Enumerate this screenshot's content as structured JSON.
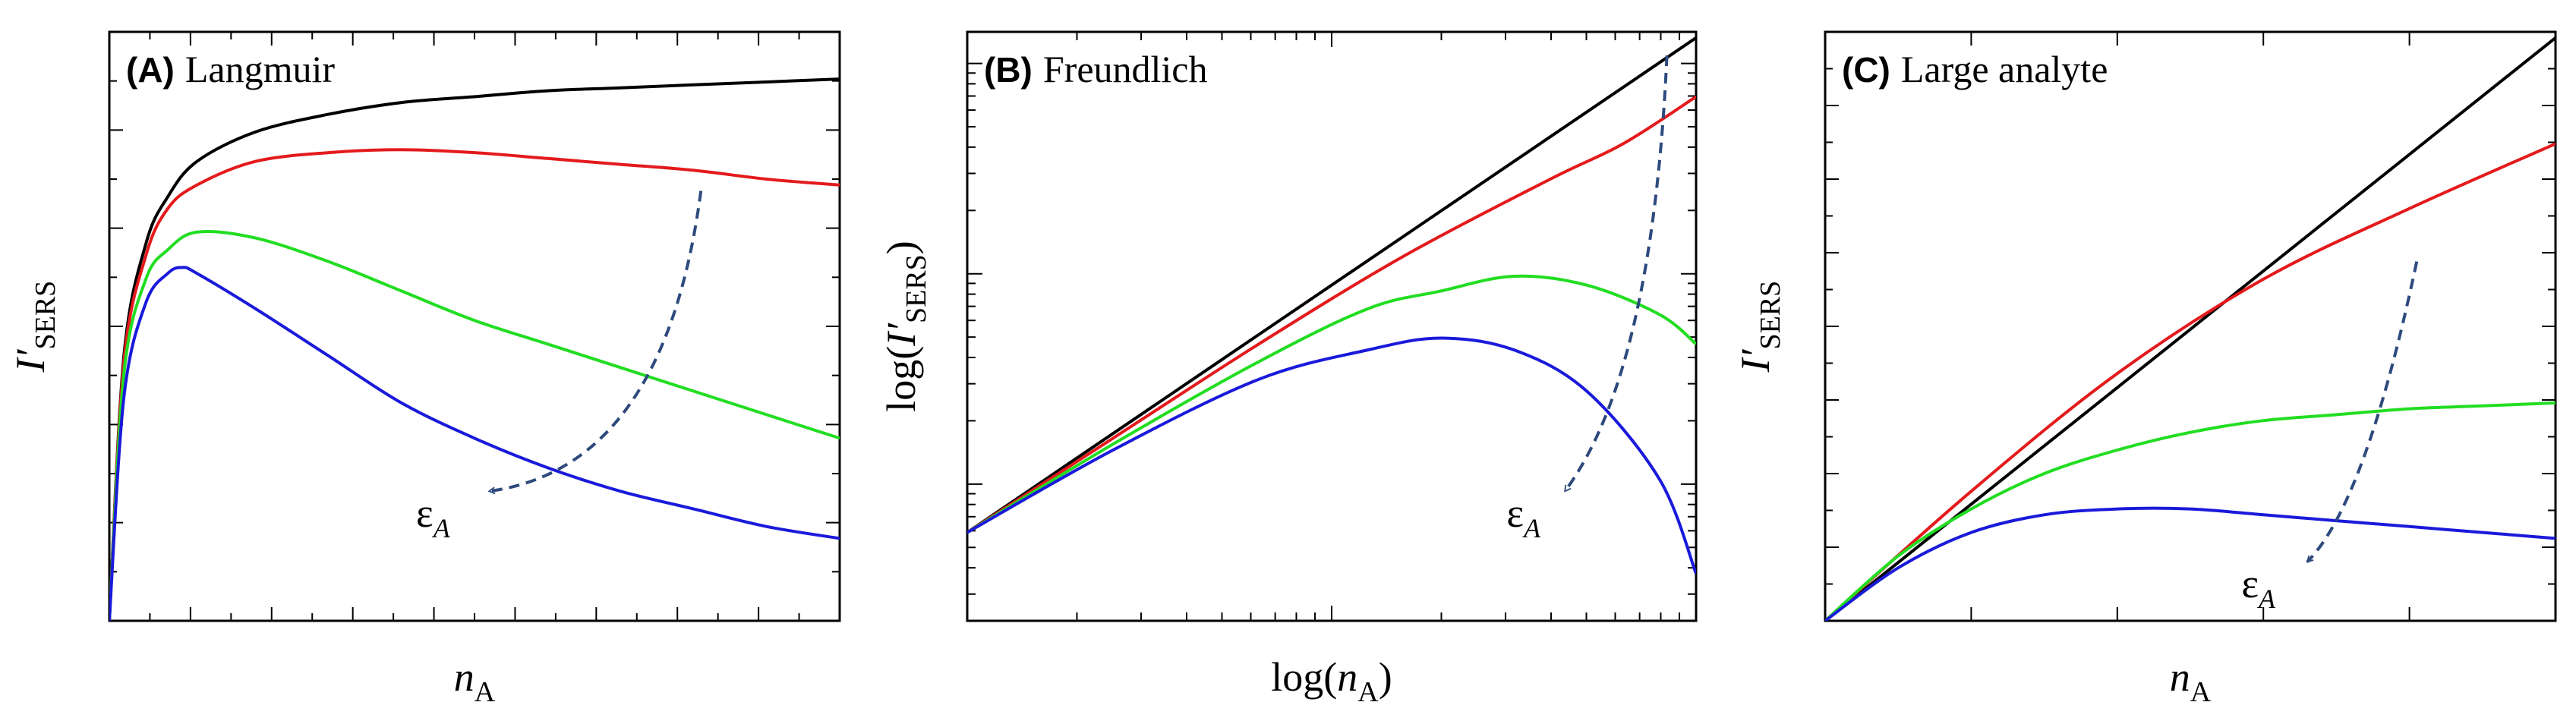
{
  "figure": {
    "colors": {
      "frame": "#000000",
      "arrow": "#2e4a7d"
    }
  },
  "chart_data": [
    {
      "id": "A",
      "type": "line",
      "letter": "(A)",
      "name": "Langmuir",
      "xlabel": {
        "main": "n",
        "sub": "A"
      },
      "ylabel": {
        "main": "I′",
        "sub": "SERS"
      },
      "xscale": "linear",
      "yscale": "linear",
      "xlim": [
        0,
        1
      ],
      "ylim": [
        0,
        1
      ],
      "grid": false,
      "legend": "none",
      "annotation": {
        "symbol": "ε",
        "sub": "A",
        "meaning": "arrow indicating increasing ε_A"
      },
      "series": [
        {
          "color": "#000000",
          "points": [
            [
              0,
              0
            ],
            [
              0.02,
              0.45
            ],
            [
              0.05,
              0.64
            ],
            [
              0.08,
              0.72
            ],
            [
              0.12,
              0.78
            ],
            [
              0.2,
              0.83
            ],
            [
              0.3,
              0.86
            ],
            [
              0.4,
              0.88
            ],
            [
              0.5,
              0.89
            ],
            [
              0.6,
              0.9
            ],
            [
              0.7,
              0.905
            ],
            [
              0.8,
              0.91
            ],
            [
              0.9,
              0.915
            ],
            [
              1,
              0.92
            ]
          ]
        },
        {
          "color": "#e41a1c",
          "points": [
            [
              0,
              0
            ],
            [
              0.02,
              0.44
            ],
            [
              0.05,
              0.62
            ],
            [
              0.08,
              0.7
            ],
            [
              0.12,
              0.74
            ],
            [
              0.2,
              0.78
            ],
            [
              0.3,
              0.795
            ],
            [
              0.4,
              0.8
            ],
            [
              0.5,
              0.795
            ],
            [
              0.6,
              0.785
            ],
            [
              0.7,
              0.775
            ],
            [
              0.8,
              0.765
            ],
            [
              0.9,
              0.75
            ],
            [
              1,
              0.74
            ]
          ]
        },
        {
          "color": "#22dd22",
          "points": [
            [
              0,
              0
            ],
            [
              0.02,
              0.42
            ],
            [
              0.05,
              0.58
            ],
            [
              0.08,
              0.63
            ],
            [
              0.12,
              0.66
            ],
            [
              0.2,
              0.65
            ],
            [
              0.3,
              0.61
            ],
            [
              0.4,
              0.56
            ],
            [
              0.5,
              0.51
            ],
            [
              0.6,
              0.47
            ],
            [
              0.7,
              0.43
            ],
            [
              0.8,
              0.39
            ],
            [
              0.9,
              0.35
            ],
            [
              1,
              0.31
            ]
          ]
        },
        {
          "color": "#1a1adb",
          "points": [
            [
              0,
              0
            ],
            [
              0.02,
              0.38
            ],
            [
              0.05,
              0.54
            ],
            [
              0.08,
              0.59
            ],
            [
              0.1,
              0.6
            ],
            [
              0.12,
              0.59
            ],
            [
              0.2,
              0.53
            ],
            [
              0.3,
              0.45
            ],
            [
              0.4,
              0.37
            ],
            [
              0.5,
              0.31
            ],
            [
              0.6,
              0.26
            ],
            [
              0.7,
              0.22
            ],
            [
              0.8,
              0.19
            ],
            [
              0.9,
              0.16
            ],
            [
              1,
              0.14
            ]
          ]
        }
      ]
    },
    {
      "id": "B",
      "type": "line",
      "letter": "(B)",
      "name": "Freundlich",
      "xlabel": {
        "pre": "log(",
        "main": "n",
        "sub": "A",
        "post": ")"
      },
      "ylabel": {
        "pre": "log(",
        "main": "I′",
        "sub": "SERS",
        "post": ")"
      },
      "xscale": "log",
      "yscale": "log",
      "xlim": [
        0,
        1
      ],
      "ylim": [
        0,
        1
      ],
      "grid": false,
      "legend": "none",
      "annotation": {
        "symbol": "ε",
        "sub": "A",
        "meaning": "arrow indicating increasing ε_A"
      },
      "series": [
        {
          "color": "#000000",
          "points": [
            [
              0,
              0.15
            ],
            [
              1,
              0.99
            ]
          ]
        },
        {
          "color": "#e41a1c",
          "points": [
            [
              0,
              0.15
            ],
            [
              0.2,
              0.31
            ],
            [
              0.4,
              0.47
            ],
            [
              0.6,
              0.62
            ],
            [
              0.8,
              0.75
            ],
            [
              0.9,
              0.81
            ],
            [
              1,
              0.89
            ]
          ]
        },
        {
          "color": "#22dd22",
          "points": [
            [
              0,
              0.15
            ],
            [
              0.2,
              0.3
            ],
            [
              0.4,
              0.44
            ],
            [
              0.55,
              0.53
            ],
            [
              0.65,
              0.56
            ],
            [
              0.75,
              0.585
            ],
            [
              0.85,
              0.57
            ],
            [
              0.95,
              0.52
            ],
            [
              1,
              0.47
            ]
          ]
        },
        {
          "color": "#1a1adb",
          "points": [
            [
              0,
              0.15
            ],
            [
              0.2,
              0.29
            ],
            [
              0.4,
              0.41
            ],
            [
              0.55,
              0.46
            ],
            [
              0.65,
              0.48
            ],
            [
              0.75,
              0.46
            ],
            [
              0.85,
              0.39
            ],
            [
              0.95,
              0.24
            ],
            [
              1,
              0.08
            ]
          ]
        }
      ]
    },
    {
      "id": "C",
      "type": "line",
      "letter": "(C)",
      "name": "Large analyte",
      "xlabel": {
        "main": "n",
        "sub": "A"
      },
      "ylabel": {
        "main": "I′",
        "sub": "SERS"
      },
      "xscale": "linear",
      "yscale": "linear",
      "xlim": [
        0,
        1
      ],
      "ylim": [
        0,
        1
      ],
      "grid": false,
      "legend": "none",
      "annotation": {
        "symbol": "ε",
        "sub": "A",
        "meaning": "arrow indicating increasing ε_A"
      },
      "series": [
        {
          "color": "#000000",
          "points": [
            [
              0,
              0
            ],
            [
              1,
              0.99
            ]
          ]
        },
        {
          "color": "#e41a1c",
          "points": [
            [
              0,
              0
            ],
            [
              0.2,
              0.22
            ],
            [
              0.4,
              0.42
            ],
            [
              0.6,
              0.58
            ],
            [
              0.8,
              0.7
            ],
            [
              1,
              0.81
            ]
          ]
        },
        {
          "color": "#22dd22",
          "points": [
            [
              0,
              0
            ],
            [
              0.1,
              0.11
            ],
            [
              0.2,
              0.19
            ],
            [
              0.3,
              0.25
            ],
            [
              0.4,
              0.29
            ],
            [
              0.5,
              0.32
            ],
            [
              0.6,
              0.34
            ],
            [
              0.7,
              0.35
            ],
            [
              0.8,
              0.36
            ],
            [
              0.9,
              0.365
            ],
            [
              1,
              0.37
            ]
          ]
        },
        {
          "color": "#1a1adb",
          "points": [
            [
              0,
              0
            ],
            [
              0.1,
              0.09
            ],
            [
              0.2,
              0.15
            ],
            [
              0.3,
              0.18
            ],
            [
              0.4,
              0.19
            ],
            [
              0.5,
              0.19
            ],
            [
              0.6,
              0.18
            ],
            [
              0.7,
              0.17
            ],
            [
              0.8,
              0.16
            ],
            [
              0.9,
              0.15
            ],
            [
              1,
              0.14
            ]
          ]
        }
      ]
    }
  ]
}
